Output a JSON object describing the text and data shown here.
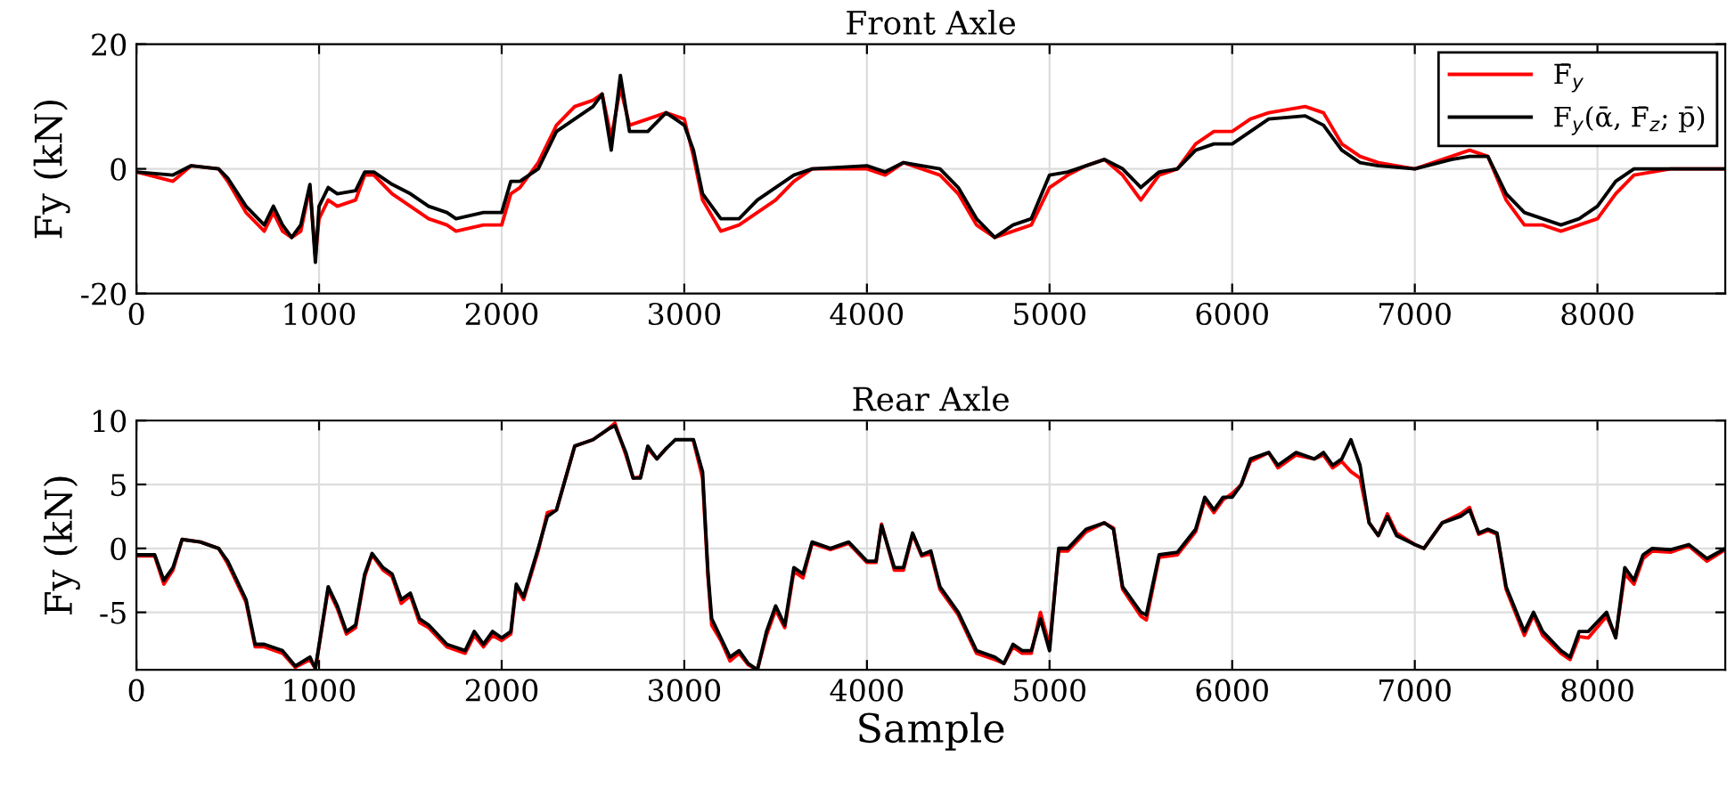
{
  "chart_data": [
    {
      "type": "line",
      "title": "Front Axle",
      "ylabel": "Fy (kN)",
      "xlim": [
        0,
        8700
      ],
      "ylim": [
        -20,
        20
      ],
      "xticks": [
        0,
        1000,
        2000,
        3000,
        4000,
        5000,
        6000,
        7000,
        8000
      ],
      "yticks": [
        -20,
        0,
        20
      ],
      "grid": true,
      "legend": "top right",
      "line_style": "solid",
      "marker": "none",
      "x": [
        0,
        200,
        300,
        450,
        500,
        600,
        700,
        750,
        800,
        850,
        900,
        950,
        980,
        1000,
        1050,
        1100,
        1200,
        1250,
        1300,
        1400,
        1500,
        1600,
        1700,
        1750,
        1900,
        2000,
        2050,
        2100,
        2200,
        2300,
        2400,
        2500,
        2550,
        2600,
        2650,
        2700,
        2800,
        2900,
        3000,
        3050,
        3100,
        3200,
        3300,
        3400,
        3500,
        3600,
        3700,
        4000,
        4100,
        4200,
        4300,
        4400,
        4500,
        4600,
        4700,
        4800,
        4900,
        5000,
        5100,
        5200,
        5300,
        5400,
        5500,
        5600,
        5700,
        5800,
        5900,
        6000,
        6100,
        6200,
        6400,
        6500,
        6600,
        6700,
        6800,
        7000,
        7200,
        7300,
        7400,
        7500,
        7600,
        7700,
        7800,
        7900,
        8000,
        8100,
        8200,
        8400,
        8600,
        8700
      ],
      "series": [
        {
          "name": "F̄$_{y}$",
          "color": "#ff0000",
          "values": [
            -0.5,
            -2,
            0.5,
            0,
            -2,
            -7,
            -10,
            -7,
            -10,
            -11,
            -10,
            -3,
            -14,
            -8,
            -5,
            -6,
            -5,
            -1,
            -1,
            -4,
            -6,
            -8,
            -9,
            -10,
            -9,
            -9,
            -4,
            -3,
            1,
            7,
            10,
            11,
            12,
            5,
            13,
            7,
            8,
            9,
            8,
            2,
            -5,
            -10,
            -9,
            -7,
            -5,
            -2,
            0,
            0,
            -1,
            1,
            0,
            -1,
            -4,
            -9,
            -11,
            -10,
            -9,
            -3,
            -1,
            0.5,
            1.5,
            -1,
            -5,
            -1,
            0,
            4,
            6,
            6,
            8,
            9,
            10,
            9,
            4,
            2,
            1,
            0,
            2,
            3,
            2,
            -5,
            -9,
            -9,
            -10,
            -9,
            -8,
            -4,
            -1,
            0,
            0,
            0
          ]
        },
        {
          "name": "F$_{y}$(ᾱ, F̄$_{z}$; p̄)",
          "color": "#000000",
          "values": [
            -0.5,
            -1,
            0.5,
            0,
            -1.5,
            -6,
            -9,
            -6,
            -9,
            -11,
            -9,
            -2.5,
            -15,
            -6,
            -3,
            -4,
            -3.5,
            -0.5,
            -0.5,
            -2.5,
            -4,
            -6,
            -7,
            -8,
            -7,
            -7,
            -2,
            -2,
            0,
            6,
            8,
            10,
            12,
            3,
            15,
            6,
            6,
            9,
            7,
            3,
            -4,
            -8,
            -8,
            -5,
            -3,
            -1,
            0,
            0.5,
            -0.5,
            1,
            0.5,
            0,
            -3,
            -8,
            -11,
            -9,
            -8,
            -1,
            -0.5,
            0.5,
            1.5,
            0,
            -3,
            -0.5,
            0,
            3,
            4,
            4,
            6,
            8,
            8.5,
            7,
            3,
            1,
            0.5,
            0,
            1.5,
            2,
            2,
            -4,
            -7,
            -8,
            -9,
            -8,
            -6,
            -2,
            0,
            0,
            0,
            0
          ]
        }
      ]
    },
    {
      "type": "line",
      "title": "Rear Axle",
      "xlabel": "Sample",
      "ylabel": "Fy (kN)",
      "xlim": [
        0,
        8700
      ],
      "ylim": [
        -9.5,
        10
      ],
      "xticks": [
        0,
        1000,
        2000,
        3000,
        4000,
        5000,
        6000,
        7000,
        8000
      ],
      "yticks": [
        -5,
        0,
        5,
        10
      ],
      "grid": true,
      "legend": false,
      "line_style": "solid",
      "marker": "none",
      "x": [
        0,
        100,
        150,
        200,
        250,
        350,
        450,
        500,
        600,
        650,
        700,
        800,
        870,
        950,
        980,
        1050,
        1100,
        1150,
        1200,
        1250,
        1290,
        1350,
        1400,
        1450,
        1500,
        1550,
        1600,
        1700,
        1800,
        1850,
        1900,
        1950,
        2000,
        2050,
        2080,
        2120,
        2200,
        2250,
        2300,
        2350,
        2400,
        2500,
        2580,
        2620,
        2680,
        2720,
        2760,
        2800,
        2850,
        2900,
        2950,
        3050,
        3100,
        3130,
        3150,
        3200,
        3250,
        3300,
        3350,
        3400,
        3450,
        3500,
        3550,
        3600,
        3650,
        3700,
        3800,
        3900,
        4000,
        4050,
        4080,
        4150,
        4200,
        4250,
        4300,
        4350,
        4400,
        4500,
        4600,
        4700,
        4750,
        4800,
        4850,
        4900,
        4950,
        5000,
        5050,
        5100,
        5200,
        5300,
        5350,
        5400,
        5500,
        5530,
        5600,
        5700,
        5800,
        5850,
        5900,
        5950,
        6000,
        6050,
        6100,
        6200,
        6250,
        6350,
        6450,
        6500,
        6550,
        6600,
        6650,
        6700,
        6750,
        6800,
        6850,
        6900,
        7000,
        7050,
        7150,
        7250,
        7300,
        7350,
        7400,
        7450,
        7500,
        7600,
        7650,
        7700,
        7800,
        7850,
        7900,
        7950,
        8050,
        8100,
        8150,
        8200,
        8250,
        8300,
        8400,
        8500,
        8600,
        8700
      ],
      "series": [
        {
          "color": "#ff0000",
          "values": [
            -0.6,
            -0.6,
            -2.8,
            -1.7,
            0.7,
            0.5,
            0,
            -1.2,
            -4.2,
            -7.7,
            -7.7,
            -8.2,
            -9.3,
            -8.7,
            -9.4,
            -3.2,
            -4.7,
            -6.7,
            -6.2,
            -2.2,
            -0.5,
            -1.7,
            -2.2,
            -4.3,
            -3.7,
            -5.8,
            -6.2,
            -7.7,
            -8.2,
            -6.8,
            -7.7,
            -6.8,
            -7.2,
            -6.7,
            -3,
            -4,
            -0.2,
            2.8,
            3,
            5.5,
            8,
            8.5,
            9.3,
            9.8,
            7.3,
            5.5,
            5.6,
            7.8,
            7,
            7.8,
            null,
            8.4,
            5.5,
            -2.3,
            -6,
            -7.2,
            -8.8,
            -8.2,
            -9.1,
            -9.5,
            -6.8,
            -4.8,
            -6.2,
            -1.8,
            -2.3,
            0.4,
            -0.1,
            0.4,
            -1.1,
            -1.1,
            1.9,
            -1.7,
            -1.7,
            1.1,
            -0.6,
            -0.4,
            -3.2,
            -5.2,
            -8.2,
            -8.7,
            -9,
            -7.7,
            -8.2,
            -8.2,
            -5,
            -7.6,
            -0.2,
            -0.2,
            1.3,
            2,
            1.6,
            -3.2,
            -5.3,
            -5.6,
            -0.7,
            -0.5,
            1.3,
            3.8,
            2.8,
            3.8,
            4.3,
            5,
            6.8,
            7.5,
            6.3,
            7.3,
            7,
            7.3,
            6.3,
            6.8,
            6,
            5.5,
            2,
            1,
            2.7,
            1.2,
            0.3,
            0,
            2,
            2.7,
            3.2,
            1.1,
            1.4,
            1.1,
            -3.2,
            -6.8,
            -5.2,
            -6.8,
            -8.2,
            -8.7,
            -6.9,
            -7,
            -5.3,
            -6.9,
            -2,
            -2.8,
            -0.8,
            -0.2,
            -0.3,
            0.2,
            -1,
            -0.1
          ]
        },
        {
          "color": "#000000",
          "values": [
            -0.5,
            -0.5,
            -2.5,
            -1.5,
            0.7,
            0.5,
            0,
            -1,
            -4,
            -7.5,
            -7.5,
            -8,
            -9.2,
            -8.5,
            -9.4,
            -3,
            -4.5,
            -6.5,
            -6,
            -2,
            -0.4,
            -1.5,
            -2,
            -4,
            -3.5,
            -5.5,
            -6,
            -7.5,
            -8,
            -6.5,
            -7.5,
            -6.5,
            -7,
            -6.5,
            -2.8,
            -3.8,
            0,
            2.5,
            3,
            5.5,
            8,
            8.5,
            9.3,
            9.6,
            7.5,
            5.5,
            5.5,
            8,
            7,
            7.8,
            8.5,
            8.5,
            6,
            -2,
            -5.5,
            -7,
            -8.5,
            -8,
            -9,
            -9.5,
            -6.5,
            -4.5,
            -6,
            -1.5,
            -2,
            0.5,
            0,
            0.5,
            -1,
            -1,
            1.8,
            -1.5,
            -1.5,
            1.2,
            -0.5,
            -0.2,
            -3,
            -5,
            -8,
            -8.5,
            -9,
            -7.5,
            -8,
            -8,
            -5.5,
            -8,
            0,
            0,
            1.5,
            2,
            1.5,
            -3,
            -5,
            -5.2,
            -0.5,
            -0.3,
            1.5,
            4,
            3,
            4,
            4,
            5,
            7,
            7.5,
            6.5,
            7.5,
            7,
            7.5,
            6.5,
            7,
            8.5,
            6.5,
            2,
            1,
            2.5,
            1,
            0.3,
            0,
            2,
            2.5,
            3,
            1.2,
            1.5,
            1.2,
            -3,
            -6.5,
            -5,
            -6.5,
            -8,
            -8.5,
            -6.5,
            -6.5,
            -5,
            -7,
            -1.5,
            -2.5,
            -0.5,
            0,
            -0.1,
            0.3,
            -0.8,
            0
          ]
        }
      ]
    }
  ]
}
